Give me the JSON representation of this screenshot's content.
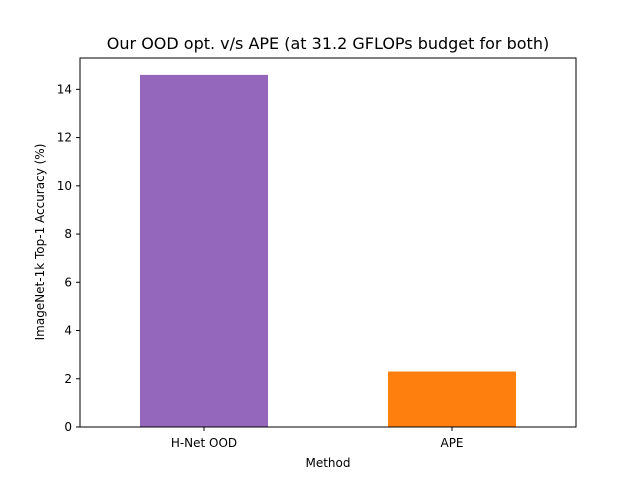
{
  "chart_data": {
    "type": "bar",
    "title": "Our OOD opt. v/s APE (at 31.2 GFLOPs budget for both)",
    "xlabel": "Method",
    "ylabel": "ImageNet-1k Top-1 Accuracy (%)",
    "categories": [
      "H-Net OOD",
      "APE"
    ],
    "values": [
      14.6,
      2.3
    ],
    "colors": [
      "#9467bd",
      "#ff7f0e"
    ],
    "ylim": [
      0,
      15.3
    ],
    "yticks": [
      0,
      2,
      4,
      6,
      8,
      10,
      12,
      14
    ],
    "grid": false,
    "legend": "none"
  }
}
